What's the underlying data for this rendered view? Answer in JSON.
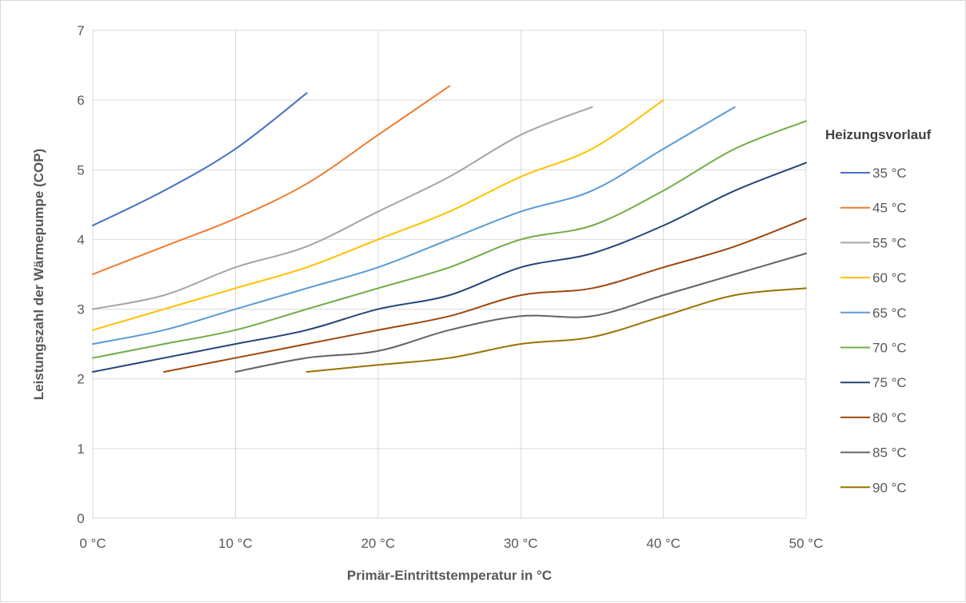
{
  "chart_data": {
    "type": "line",
    "xlabel": "Primär-Eintrittstemperatur in °C",
    "ylabel": "Leistungszahl der Wärmepumpe (COP)",
    "xlim": [
      0,
      50
    ],
    "ylim": [
      0,
      7
    ],
    "x_ticks": [
      {
        "value": 0,
        "label": "0 °C"
      },
      {
        "value": 10,
        "label": "10 °C"
      },
      {
        "value": 20,
        "label": "20 °C"
      },
      {
        "value": 30,
        "label": "30 °C"
      },
      {
        "value": 40,
        "label": "40 °C"
      },
      {
        "value": 50,
        "label": "50 °C"
      }
    ],
    "y_ticks": [
      {
        "value": 0,
        "label": "0"
      },
      {
        "value": 1,
        "label": "1"
      },
      {
        "value": 2,
        "label": "2"
      },
      {
        "value": 3,
        "label": "3"
      },
      {
        "value": 4,
        "label": "4"
      },
      {
        "value": 5,
        "label": "5"
      },
      {
        "value": 6,
        "label": "6"
      },
      {
        "value": 7,
        "label": "7"
      }
    ],
    "grid": "vertical and horizontal",
    "legend": {
      "title": "Heizungsvorlauf",
      "position": "right"
    },
    "series": [
      {
        "name": "35 °C",
        "color": "#4472c4",
        "x": [
          0,
          5,
          10,
          15
        ],
        "y": [
          4.2,
          4.7,
          5.3,
          6.1
        ]
      },
      {
        "name": "45 °C",
        "color": "#ed7d31",
        "x": [
          0,
          5,
          10,
          15,
          20,
          25
        ],
        "y": [
          3.5,
          3.9,
          4.3,
          4.8,
          5.5,
          6.2
        ]
      },
      {
        "name": "55 °C",
        "color": "#a5a5a5",
        "x": [
          0,
          5,
          10,
          15,
          20,
          25,
          30,
          35
        ],
        "y": [
          3.0,
          3.2,
          3.6,
          3.9,
          4.4,
          4.9,
          5.5,
          5.9
        ]
      },
      {
        "name": "60 °C",
        "color": "#ffc000",
        "x": [
          0,
          5,
          10,
          15,
          20,
          25,
          30,
          35,
          40
        ],
        "y": [
          2.7,
          3.0,
          3.3,
          3.6,
          4.0,
          4.4,
          4.9,
          5.3,
          6.0
        ]
      },
      {
        "name": "65 °C",
        "color": "#5b9bd5",
        "x": [
          0,
          5,
          10,
          15,
          20,
          25,
          30,
          35,
          40,
          45
        ],
        "y": [
          2.5,
          2.7,
          3.0,
          3.3,
          3.6,
          4.0,
          4.4,
          4.7,
          5.3,
          5.9
        ]
      },
      {
        "name": "70 °C",
        "color": "#70ad47",
        "x": [
          0,
          5,
          10,
          15,
          20,
          25,
          30,
          35,
          40,
          45,
          50
        ],
        "y": [
          2.3,
          2.5,
          2.7,
          3.0,
          3.3,
          3.6,
          4.0,
          4.2,
          4.7,
          5.3,
          5.7
        ]
      },
      {
        "name": "75 °C",
        "color": "#264478",
        "x": [
          0,
          5,
          10,
          15,
          20,
          25,
          30,
          35,
          40,
          45,
          50
        ],
        "y": [
          2.1,
          2.3,
          2.5,
          2.7,
          3.0,
          3.2,
          3.6,
          3.8,
          4.2,
          4.7,
          5.1
        ]
      },
      {
        "name": "80 °C",
        "color": "#9e480e",
        "x": [
          5,
          10,
          15,
          20,
          25,
          30,
          35,
          40,
          45,
          50
        ],
        "y": [
          2.1,
          2.3,
          2.5,
          2.7,
          2.9,
          3.2,
          3.3,
          3.6,
          3.9,
          4.3
        ]
      },
      {
        "name": "85 °C",
        "color": "#636363",
        "x": [
          10,
          15,
          20,
          25,
          30,
          35,
          40,
          45,
          50
        ],
        "y": [
          2.1,
          2.3,
          2.4,
          2.7,
          2.9,
          2.9,
          3.2,
          3.5,
          3.8
        ]
      },
      {
        "name": "90 °C",
        "color": "#997300",
        "x": [
          15,
          20,
          25,
          30,
          35,
          40,
          45,
          50
        ],
        "y": [
          2.1,
          2.2,
          2.3,
          2.5,
          2.6,
          2.9,
          3.2,
          3.3
        ]
      }
    ]
  }
}
